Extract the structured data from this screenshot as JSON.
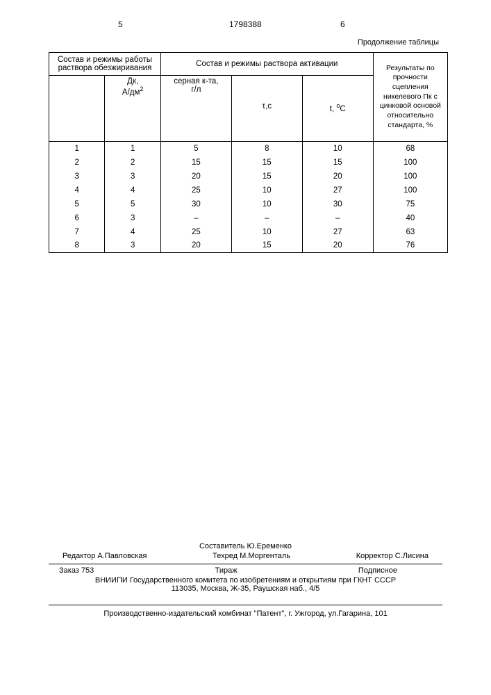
{
  "page": {
    "num_left": "5",
    "num_center": "1798388",
    "num_right": "6",
    "continuation": "Продолжение таблицы"
  },
  "table": {
    "header_group_1": "Состав и режимы работы раствора обезжиривания",
    "header_group_2": "Состав и режимы раствора активации",
    "header_group_3": "Результаты по прочности сцепления никелевого Пк с цинковой основой относительно стандарта, %",
    "sub_col1_line1": "Дк,",
    "sub_col1_line2": "А/дм",
    "sub_col1_sup": "2",
    "sub_col2_line1": "серная к-та,",
    "sub_col2_line2": "г/л",
    "sub_col3": "τ,с",
    "sub_col4_line1": "t, ",
    "sub_col4_sup": "o",
    "sub_col4_line2": "С",
    "rows": [
      {
        "c0": "1",
        "c1": "1",
        "c2": "5",
        "c3": "8",
        "c4": "10",
        "c5": "68"
      },
      {
        "c0": "2",
        "c1": "2",
        "c2": "15",
        "c3": "15",
        "c4": "15",
        "c5": "100"
      },
      {
        "c0": "3",
        "c1": "3",
        "c2": "20",
        "c3": "15",
        "c4": "20",
        "c5": "100"
      },
      {
        "c0": "4",
        "c1": "4",
        "c2": "25",
        "c3": "10",
        "c4": "27",
        "c5": "100"
      },
      {
        "c0": "5",
        "c1": "5",
        "c2": "30",
        "c3": "10",
        "c4": "30",
        "c5": "75"
      },
      {
        "c0": "6",
        "c1": "3",
        "c2": "–",
        "c3": "–",
        "c4": "–",
        "c5": "40"
      },
      {
        "c0": "7",
        "c1": "4",
        "c2": "25",
        "c3": "10",
        "c4": "27",
        "c5": "63"
      },
      {
        "c0": "8",
        "c1": "3",
        "c2": "20",
        "c3": "15",
        "c4": "20",
        "c5": "76"
      }
    ]
  },
  "footer": {
    "composer": "Составитель Ю.Еременко",
    "editor": "Редактор А.Павловская",
    "techred": "Техред М.Моргенталь",
    "corrector": "Корректор С.Лисина",
    "order": "Заказ 753",
    "tiraz": "Тираж",
    "subscription": "Подписное",
    "org": "ВНИИПИ Государственного комитета по изобретениям и открытиям при ГКНТ СССР",
    "address1": "113035, Москва, Ж-35, Раушская наб., 4/5",
    "address2": "Производственно-издательский комбинат \"Патент\", г. Ужгород, ул.Гагарина, 101"
  }
}
